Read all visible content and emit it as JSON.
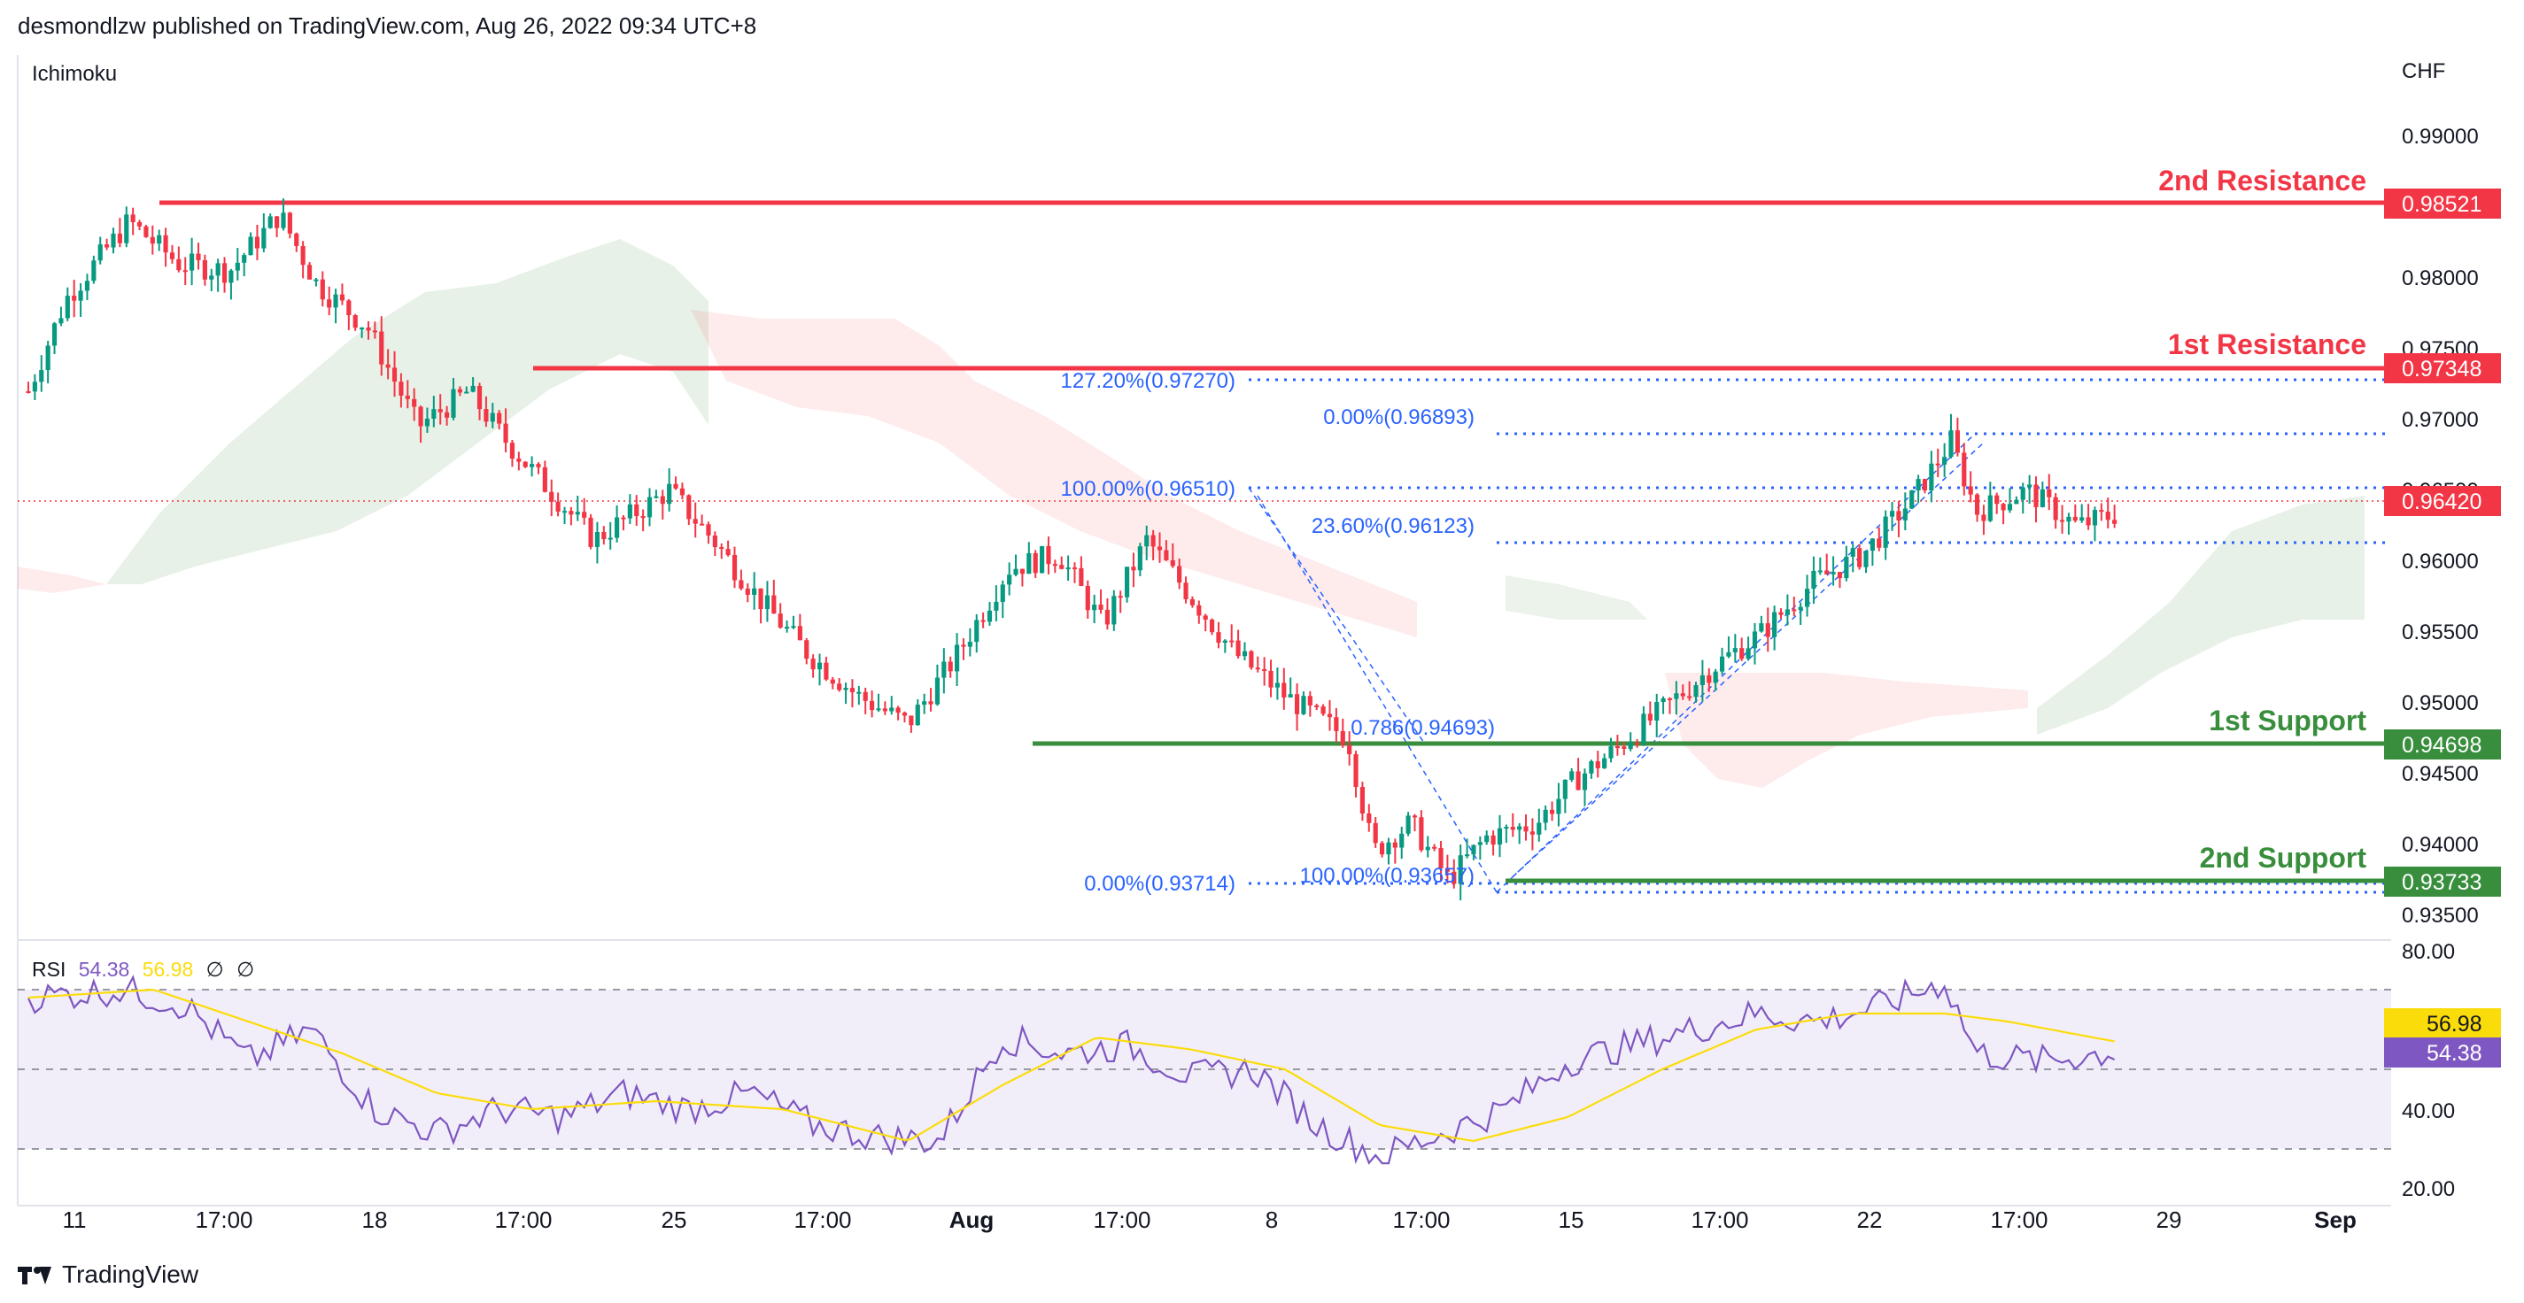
{
  "header": {
    "text": "desmondlzw published on TradingView.com, Aug 26, 2022 09:34 UTC+8"
  },
  "chart": {
    "indicator_label": "Ichimoku",
    "currency": "CHF",
    "price_axis": [
      "0.99000",
      "0.98000",
      "0.97500",
      "0.97000",
      "0.96500",
      "0.96000",
      "0.95500",
      "0.95000",
      "0.94500",
      "0.94000",
      "0.93500"
    ],
    "time_axis": [
      "11",
      "17:00",
      "18",
      "17:00",
      "25",
      "17:00",
      "Aug",
      "17:00",
      "8",
      "17:00",
      "15",
      "17:00",
      "22",
      "17:00",
      "29",
      "Sep"
    ],
    "levels": [
      {
        "name": "2nd Resistance",
        "value": "0.98521",
        "color": "#f23645"
      },
      {
        "name": "1st Resistance",
        "value": "0.97348",
        "color": "#f23645"
      },
      {
        "name": "1st Support",
        "value": "0.94698",
        "color": "#388e3c"
      },
      {
        "name": "2nd Support",
        "value": "0.93733",
        "color": "#388e3c"
      }
    ],
    "current_price": "0.96420",
    "fib_labels": {
      "f1272": "127.20%(0.97270)",
      "f0_top": "0.00%(0.96893)",
      "f100_a": "100.00%(0.96510)",
      "f236": "23.60%(0.96123)",
      "f786": "0.786(0.94693)",
      "f0_low": "0.00%(0.93714)",
      "f100_b": "100.00%(0.93657)"
    }
  },
  "rsi": {
    "label": "RSI",
    "value": "54.38",
    "ma_value": "56.98",
    "extras": [
      "∅",
      "∅"
    ],
    "axis": [
      "80.00",
      "40.00",
      "20.00"
    ],
    "colors": {
      "rsi": "#7e57c2",
      "ma": "#fbdc0b"
    }
  },
  "footer": {
    "brand": "TradingView"
  }
}
